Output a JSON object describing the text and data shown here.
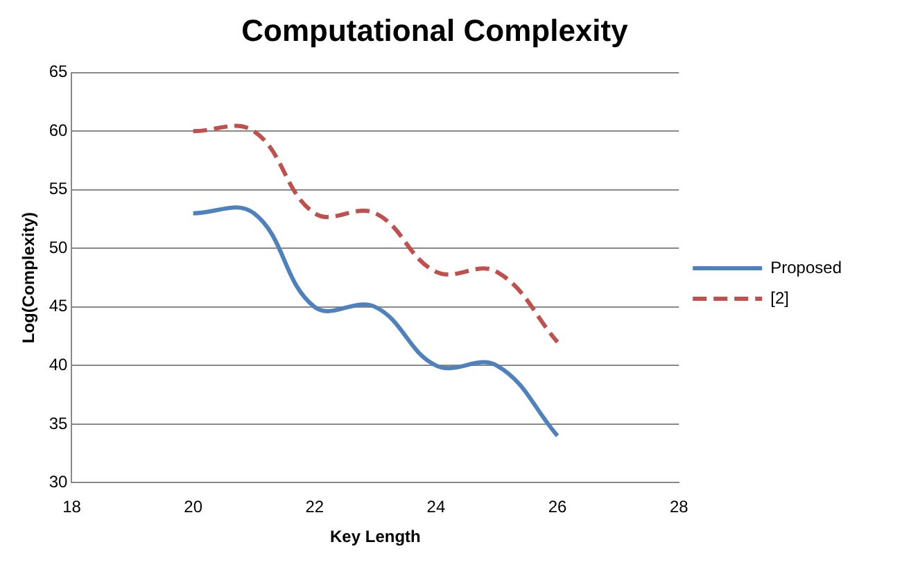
{
  "chart_data": {
    "type": "line",
    "title": "Computational Complexity",
    "xlabel": "Key Length",
    "ylabel": "Log(Complexity)",
    "x": [
      20,
      21,
      22,
      23,
      24,
      25,
      26
    ],
    "series": [
      {
        "name": "Proposed",
        "color": "#4f81bd",
        "values": [
          53,
          53,
          45,
          45,
          40,
          40,
          34
        ],
        "line_style": "solid"
      },
      {
        "name": "[2]",
        "color": "#c0504d",
        "values": [
          60,
          60,
          53,
          53,
          48,
          48,
          42
        ],
        "line_style": "dashed"
      }
    ],
    "xlim": [
      18,
      28
    ],
    "xticks": [
      18,
      20,
      22,
      24,
      26,
      28
    ],
    "ylim": [
      30,
      65
    ],
    "yticks": [
      30,
      35,
      40,
      45,
      50,
      55,
      60,
      65
    ],
    "grid": "y",
    "legend": "right",
    "marker": "none"
  }
}
